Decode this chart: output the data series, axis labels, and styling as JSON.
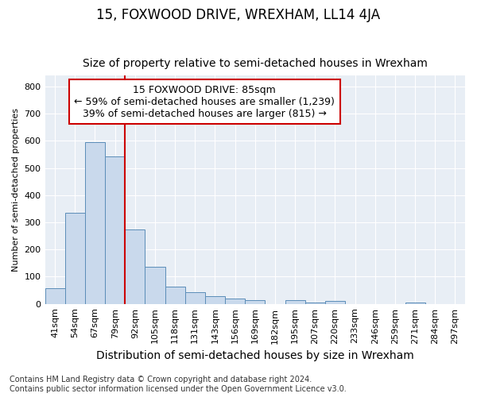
{
  "title": "15, FOXWOOD DRIVE, WREXHAM, LL14 4JA",
  "subtitle": "Size of property relative to semi-detached houses in Wrexham",
  "xlabel": "Distribution of semi-detached houses by size in Wrexham",
  "ylabel": "Number of semi-detached properties",
  "footnote": "Contains HM Land Registry data © Crown copyright and database right 2024.\nContains public sector information licensed under the Open Government Licence v3.0.",
  "bar_labels": [
    "41sqm",
    "54sqm",
    "67sqm",
    "79sqm",
    "92sqm",
    "105sqm",
    "118sqm",
    "131sqm",
    "143sqm",
    "156sqm",
    "169sqm",
    "182sqm",
    "195sqm",
    "207sqm",
    "220sqm",
    "233sqm",
    "246sqm",
    "259sqm",
    "271sqm",
    "284sqm",
    "297sqm"
  ],
  "bar_values": [
    57,
    335,
    595,
    543,
    275,
    137,
    63,
    42,
    28,
    20,
    15,
    0,
    15,
    5,
    12,
    0,
    0,
    0,
    5,
    0,
    0
  ],
  "bar_color": "#c9d9ec",
  "bar_edge_color": "#5b8db8",
  "property_line_label": "15 FOXWOOD DRIVE: 85sqm",
  "smaller_pct": "59%",
  "smaller_count": "1,239",
  "larger_pct": "39%",
  "larger_count": "815",
  "annotation_box_color": "#ffffff",
  "annotation_box_edge": "#cc0000",
  "line_color": "#cc0000",
  "bg_color": "#e8eef5",
  "ylim": [
    0,
    840
  ],
  "yticks": [
    0,
    100,
    200,
    300,
    400,
    500,
    600,
    700,
    800
  ],
  "property_bin_index": 3,
  "title_fontsize": 12,
  "subtitle_fontsize": 10,
  "xlabel_fontsize": 10,
  "ylabel_fontsize": 8,
  "tick_fontsize": 8,
  "annot_fontsize": 9,
  "footnote_fontsize": 7
}
